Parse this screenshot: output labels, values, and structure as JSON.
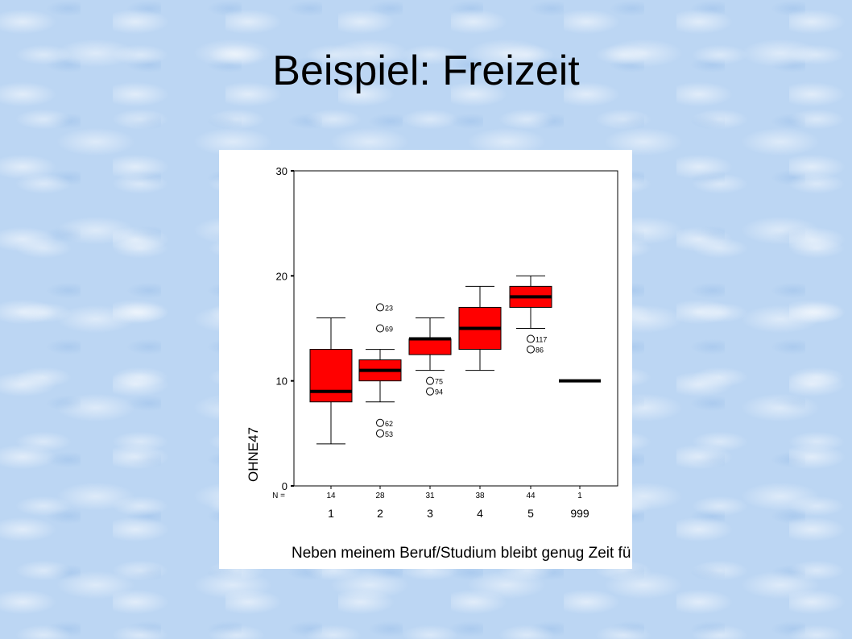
{
  "slide": {
    "title": "Beispiel: Freizeit"
  },
  "chart_data": {
    "type": "boxplot",
    "ylabel": "OHNE47",
    "xlabel": "Neben meinem Beruf/Studium bleibt genug Zeit fü",
    "ylim": [
      0,
      30
    ],
    "yticks": [
      0,
      10,
      20,
      30
    ],
    "n_label": "N =",
    "grid": false,
    "box_color": "#ff0000",
    "median_color": "#000000",
    "categories": [
      "1",
      "2",
      "3",
      "4",
      "5",
      "999"
    ],
    "n": [
      "14",
      "28",
      "31",
      "38",
      "44",
      "1"
    ],
    "boxes": [
      {
        "category": "1",
        "min": 4,
        "q1": 8,
        "median": 9,
        "q3": 13,
        "max": 16,
        "outliers": []
      },
      {
        "category": "2",
        "min": 8,
        "q1": 10,
        "median": 11,
        "q3": 12,
        "max": 13,
        "outliers": [
          {
            "y": 17,
            "label": "23"
          },
          {
            "y": 15,
            "label": "69"
          },
          {
            "y": 6,
            "label": "62"
          },
          {
            "y": 5,
            "label": "53"
          }
        ]
      },
      {
        "category": "3",
        "min": 11,
        "q1": 12.5,
        "median": 14,
        "q3": 14,
        "max": 16,
        "outliers": [
          {
            "y": 10,
            "label": "75"
          },
          {
            "y": 9,
            "label": "94"
          }
        ]
      },
      {
        "category": "4",
        "min": 11,
        "q1": 13,
        "median": 15,
        "q3": 17,
        "max": 19,
        "outliers": []
      },
      {
        "category": "5",
        "min": 15,
        "q1": 17,
        "median": 18,
        "q3": 19,
        "max": 20,
        "outliers": [
          {
            "y": 14,
            "label": "117"
          },
          {
            "y": 13,
            "label": "86"
          }
        ]
      },
      {
        "category": "999",
        "median": 10,
        "single": true,
        "outliers": []
      }
    ]
  }
}
